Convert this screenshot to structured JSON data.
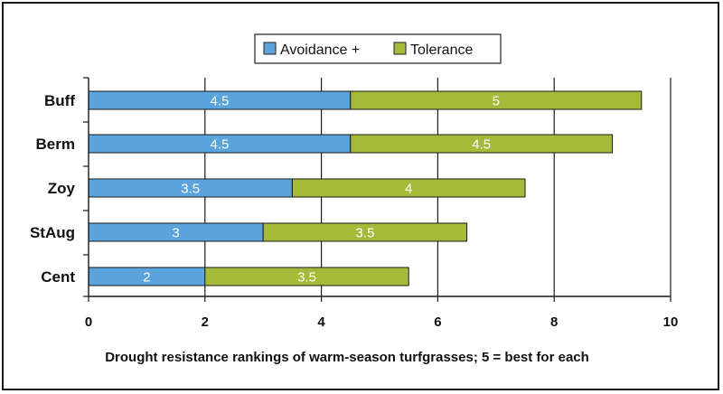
{
  "chart_data": {
    "type": "bar",
    "orientation": "horizontal",
    "stacked": true,
    "categories": [
      "Buff",
      "Berm",
      "Zoy",
      "StAug",
      "Cent"
    ],
    "series": [
      {
        "name": "Avoidance +",
        "values": [
          4.5,
          4.5,
          3.5,
          3,
          2
        ],
        "labels": [
          "4.5",
          "4.5",
          "3.5",
          "3",
          "2"
        ],
        "color": "#5aa3dc"
      },
      {
        "name": "Tolerance",
        "values": [
          5,
          4.5,
          4,
          3.5,
          3.5
        ],
        "labels": [
          "5",
          "4.5",
          "4",
          "3.5",
          "3.5"
        ],
        "color": "#a6ba3a"
      }
    ],
    "xticks": [
      "0",
      "2",
      "4",
      "6",
      "8",
      "10"
    ],
    "xlim": [
      0,
      10
    ],
    "xlabel": "Drought resistance rankings of warm-season turfgrasses; 5 = best for each",
    "grid": "vertical",
    "legend_position": "top"
  }
}
